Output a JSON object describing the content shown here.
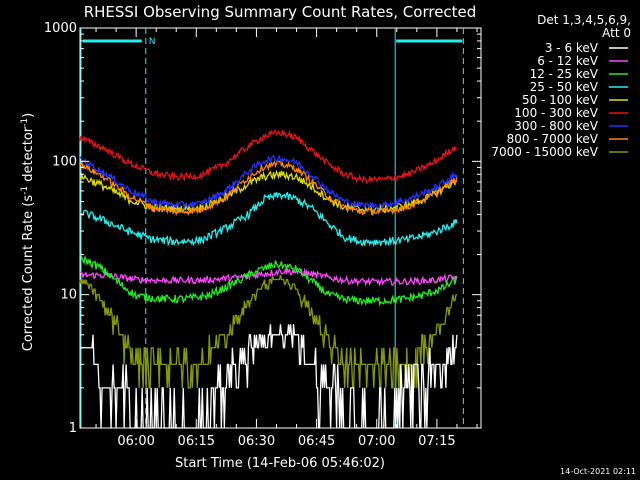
{
  "chart_data": {
    "type": "line",
    "title": "RHESSI Observing Summary Count Rates, Corrected",
    "xlabel": "Start Time (14-Feb-06 05:46:02)",
    "ylabel_main": "Corrected Count Rate (s",
    "ylabel_sup1": "-1",
    "ylabel_mid": " detector",
    "ylabel_sup2": "-1",
    "ylabel_end": ")",
    "y_scale": "log",
    "ylim": [
      1,
      1000
    ],
    "y_ticks": [
      1,
      10,
      100,
      1000
    ],
    "y_tick_labels": [
      "1",
      "10",
      "100",
      "1000"
    ],
    "xlim_min": [
      0,
      100
    ],
    "x_ticks_min": [
      14,
      29,
      44,
      59,
      74,
      89
    ],
    "x_tick_labels": [
      "06:00",
      "06:15",
      "06:30",
      "06:45",
      "07:00",
      "07:15"
    ],
    "legend_position": "right",
    "legend_header": [
      "Det 1,3,4,5,6,9,",
      "Att 0"
    ],
    "series": [
      {
        "name": "3 - 6 keV",
        "color": "#ffffff",
        "x": [
          0,
          3,
          4,
          8,
          14,
          18,
          23,
          29,
          34,
          38,
          42,
          45,
          48,
          50,
          53,
          55,
          60,
          65,
          70,
          72,
          76,
          80,
          84,
          86,
          89,
          92,
          94
        ],
        "y": [
          4,
          4,
          2.6,
          1.8,
          1.4,
          1.3,
          1.2,
          1.3,
          1.6,
          2.5,
          3.5,
          4.5,
          5,
          5.5,
          5,
          4,
          2.2,
          1.5,
          1.3,
          1.3,
          1.4,
          1.6,
          2,
          2.4,
          2.8,
          3.3,
          3.8
        ]
      },
      {
        "name": "6 - 12 keV",
        "color": "#ff44ff",
        "x": [
          0,
          6,
          10,
          14,
          20,
          30,
          40,
          45,
          50,
          55,
          60,
          66,
          72,
          80,
          88,
          94
        ],
        "y": [
          14,
          14,
          13.5,
          13,
          12.8,
          12.8,
          13.5,
          14.2,
          15,
          14.8,
          13.8,
          12.8,
          12.5,
          12.5,
          12.8,
          13.5
        ]
      },
      {
        "name": "12 - 25 keV",
        "color": "#22ee22",
        "x": [
          0,
          5,
          10,
          14,
          20,
          26,
          32,
          38,
          44,
          49,
          54,
          58,
          62,
          66,
          70,
          75,
          80,
          85,
          90,
          94
        ],
        "y": [
          19,
          16,
          12,
          9.8,
          9.3,
          9.3,
          9.8,
          12,
          15,
          17,
          15.5,
          12.5,
          10,
          9.2,
          9.0,
          9.0,
          9.2,
          9.8,
          11,
          13
        ]
      },
      {
        "name": "25 - 50 keV",
        "color": "#22eeee",
        "x": [
          0,
          6,
          12,
          18,
          24,
          30,
          36,
          42,
          46,
          50,
          54,
          58,
          62,
          66,
          70,
          76,
          82,
          88,
          94
        ],
        "y": [
          42,
          36,
          30,
          26,
          25,
          25.5,
          31,
          40,
          52,
          56,
          52,
          44,
          34,
          27,
          25,
          25,
          26,
          29,
          35
        ]
      },
      {
        "name": "50 - 100 keV",
        "color": "#dddd00",
        "x": [
          0,
          6,
          12,
          18,
          24,
          30,
          36,
          42,
          46,
          50,
          54,
          58,
          62,
          66,
          70,
          76,
          82,
          88,
          94
        ],
        "y": [
          78,
          65,
          52,
          45,
          44,
          45,
          53,
          68,
          77,
          80,
          76,
          64,
          52,
          45,
          44,
          44,
          47,
          56,
          72
        ]
      },
      {
        "name": "100 - 300 keV",
        "color": "#ee1111",
        "x": [
          0,
          6,
          12,
          18,
          24,
          30,
          36,
          42,
          46,
          50,
          54,
          58,
          62,
          66,
          70,
          76,
          82,
          88,
          94
        ],
        "y": [
          150,
          125,
          98,
          82,
          76,
          78,
          95,
          130,
          155,
          165,
          150,
          120,
          95,
          80,
          73,
          73,
          80,
          97,
          130
        ]
      },
      {
        "name": "300 - 800 keV",
        "color": "#2233ff",
        "x": [
          0,
          6,
          12,
          18,
          24,
          30,
          36,
          42,
          46,
          50,
          54,
          58,
          62,
          66,
          70,
          76,
          82,
          88,
          94
        ],
        "y": [
          105,
          82,
          62,
          50,
          47,
          48,
          59,
          84,
          102,
          106,
          98,
          78,
          60,
          50,
          47,
          47,
          52,
          62,
          80
        ]
      },
      {
        "name": "800 - 7000 keV",
        "color": "#ff8800",
        "x": [
          0,
          6,
          12,
          18,
          24,
          30,
          36,
          42,
          46,
          50,
          54,
          58,
          62,
          66,
          70,
          76,
          82,
          88,
          94
        ],
        "y": [
          96,
          76,
          56,
          45,
          42,
          43,
          53,
          76,
          92,
          96,
          88,
          70,
          54,
          45,
          42,
          42,
          46,
          56,
          74
        ]
      },
      {
        "name": "7000 - 15000 keV",
        "color": "#889900",
        "x": [
          0,
          3,
          6,
          10,
          14,
          20,
          26,
          30,
          34,
          38,
          42,
          46,
          50,
          53,
          56,
          60,
          64,
          68,
          72,
          78,
          82,
          86,
          90,
          94
        ],
        "y": [
          12,
          11.5,
          8.5,
          5,
          3.2,
          2.8,
          2.8,
          3.1,
          4,
          6,
          9,
          12,
          13.5,
          12,
          8.5,
          5.5,
          3.6,
          2.8,
          2.7,
          2.7,
          3,
          4,
          6,
          10
        ]
      }
    ],
    "annotation_N": "N",
    "timestamp": "14-Oct-2021 02:11"
  }
}
